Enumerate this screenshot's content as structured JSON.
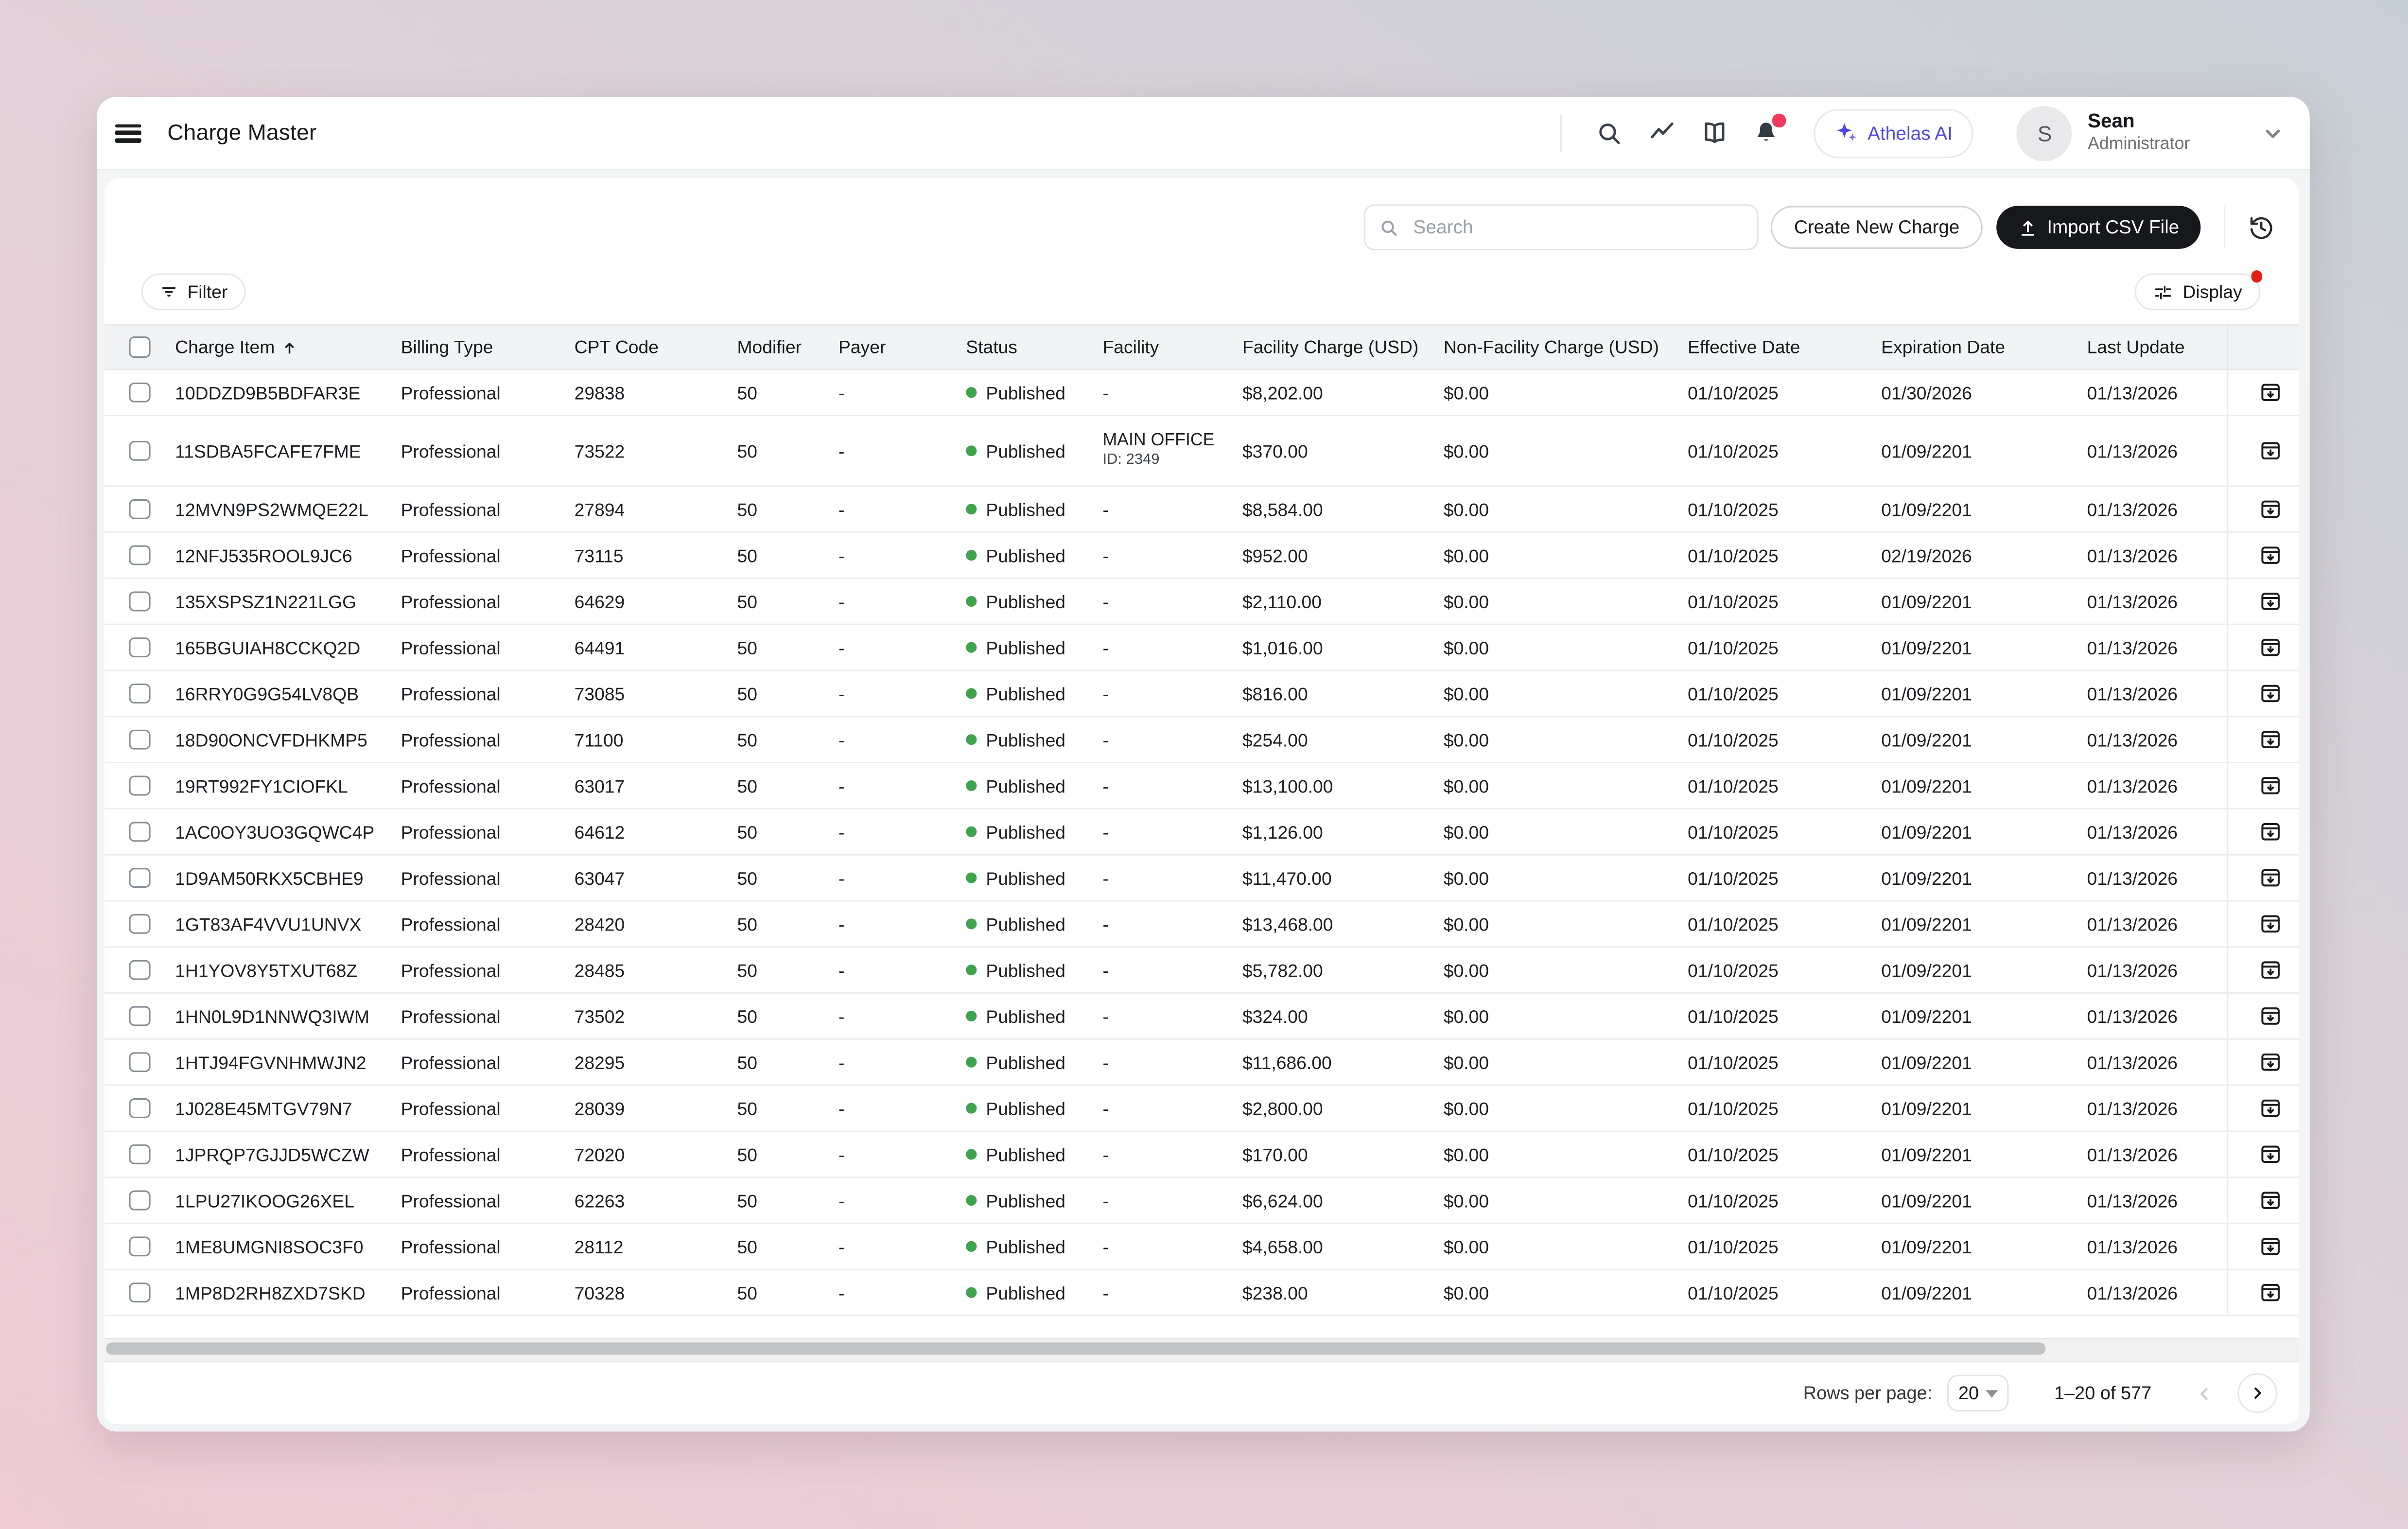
{
  "app": {
    "title": "Charge Master"
  },
  "header": {
    "athelas_button": "Athelas AI",
    "user": {
      "initial": "S",
      "name": "Sean",
      "role": "Administrator"
    },
    "icons": [
      "search-icon",
      "trending-icon",
      "book-icon",
      "bell-icon"
    ]
  },
  "toolbar": {
    "search_placeholder": "Search",
    "create_button": "Create New Charge",
    "import_button": "Import CSV File"
  },
  "controls": {
    "filter_button": "Filter",
    "display_button": "Display"
  },
  "table": {
    "sort": {
      "column": "Charge Item",
      "direction": "asc"
    },
    "columns": [
      "Charge Item",
      "Billing Type",
      "CPT Code",
      "Modifier",
      "Payer",
      "Status",
      "Facility",
      "Facility Charge (USD)",
      "Non-Facility Charge (USD)",
      "Effective Date",
      "Expiration Date",
      "Last Update"
    ],
    "column_keys": [
      "id",
      "billing",
      "cpt",
      "modifier",
      "payer",
      "status",
      "facility",
      "fac_charge",
      "nonfac_charge",
      "effective",
      "expiration",
      "updated"
    ],
    "rows": [
      {
        "id": "10DDZD9B5BDFAR3E",
        "billing": "Professional",
        "cpt": "29838",
        "modifier": "50",
        "payer": "-",
        "status": "Published",
        "facility": "-",
        "fac_charge": "$8,202.00",
        "nonfac_charge": "$0.00",
        "effective": "01/10/2025",
        "expiration": "01/30/2026",
        "updated": "01/13/2026"
      },
      {
        "id": "11SDBA5FCAFE7FME",
        "billing": "Professional",
        "cpt": "73522",
        "modifier": "50",
        "payer": "-",
        "status": "Published",
        "facility": "",
        "facility_name": "MAIN OFFICE",
        "facility_id": "ID: 2349",
        "fac_charge": "$370.00",
        "nonfac_charge": "$0.00",
        "effective": "01/10/2025",
        "expiration": "01/09/2201",
        "updated": "01/13/2026"
      },
      {
        "id": "12MVN9PS2WMQE22L",
        "billing": "Professional",
        "cpt": "27894",
        "modifier": "50",
        "payer": "-",
        "status": "Published",
        "facility": "-",
        "fac_charge": "$8,584.00",
        "nonfac_charge": "$0.00",
        "effective": "01/10/2025",
        "expiration": "01/09/2201",
        "updated": "01/13/2026"
      },
      {
        "id": "12NFJ535ROOL9JC6",
        "billing": "Professional",
        "cpt": "73115",
        "modifier": "50",
        "payer": "-",
        "status": "Published",
        "facility": "-",
        "fac_charge": "$952.00",
        "nonfac_charge": "$0.00",
        "effective": "01/10/2025",
        "expiration": "02/19/2026",
        "updated": "01/13/2026"
      },
      {
        "id": "135XSPSZ1N221LGG",
        "billing": "Professional",
        "cpt": "64629",
        "modifier": "50",
        "payer": "-",
        "status": "Published",
        "facility": "-",
        "fac_charge": "$2,110.00",
        "nonfac_charge": "$0.00",
        "effective": "01/10/2025",
        "expiration": "01/09/2201",
        "updated": "01/13/2026"
      },
      {
        "id": "165BGUIAH8CCKQ2D",
        "billing": "Professional",
        "cpt": "64491",
        "modifier": "50",
        "payer": "-",
        "status": "Published",
        "facility": "-",
        "fac_charge": "$1,016.00",
        "nonfac_charge": "$0.00",
        "effective": "01/10/2025",
        "expiration": "01/09/2201",
        "updated": "01/13/2026"
      },
      {
        "id": "16RRY0G9G54LV8QB",
        "billing": "Professional",
        "cpt": "73085",
        "modifier": "50",
        "payer": "-",
        "status": "Published",
        "facility": "-",
        "fac_charge": "$816.00",
        "nonfac_charge": "$0.00",
        "effective": "01/10/2025",
        "expiration": "01/09/2201",
        "updated": "01/13/2026"
      },
      {
        "id": "18D90ONCVFDHKMP5",
        "billing": "Professional",
        "cpt": "71100",
        "modifier": "50",
        "payer": "-",
        "status": "Published",
        "facility": "-",
        "fac_charge": "$254.00",
        "nonfac_charge": "$0.00",
        "effective": "01/10/2025",
        "expiration": "01/09/2201",
        "updated": "01/13/2026"
      },
      {
        "id": "19RT992FY1CIOFKL",
        "billing": "Professional",
        "cpt": "63017",
        "modifier": "50",
        "payer": "-",
        "status": "Published",
        "facility": "-",
        "fac_charge": "$13,100.00",
        "nonfac_charge": "$0.00",
        "effective": "01/10/2025",
        "expiration": "01/09/2201",
        "updated": "01/13/2026"
      },
      {
        "id": "1AC0OY3UO3GQWC4P",
        "billing": "Professional",
        "cpt": "64612",
        "modifier": "50",
        "payer": "-",
        "status": "Published",
        "facility": "-",
        "fac_charge": "$1,126.00",
        "nonfac_charge": "$0.00",
        "effective": "01/10/2025",
        "expiration": "01/09/2201",
        "updated": "01/13/2026"
      },
      {
        "id": "1D9AM50RKX5CBHE9",
        "billing": "Professional",
        "cpt": "63047",
        "modifier": "50",
        "payer": "-",
        "status": "Published",
        "facility": "-",
        "fac_charge": "$11,470.00",
        "nonfac_charge": "$0.00",
        "effective": "01/10/2025",
        "expiration": "01/09/2201",
        "updated": "01/13/2026"
      },
      {
        "id": "1GT83AF4VVU1UNVX",
        "billing": "Professional",
        "cpt": "28420",
        "modifier": "50",
        "payer": "-",
        "status": "Published",
        "facility": "-",
        "fac_charge": "$13,468.00",
        "nonfac_charge": "$0.00",
        "effective": "01/10/2025",
        "expiration": "01/09/2201",
        "updated": "01/13/2026"
      },
      {
        "id": "1H1YOV8Y5TXUT68Z",
        "billing": "Professional",
        "cpt": "28485",
        "modifier": "50",
        "payer": "-",
        "status": "Published",
        "facility": "-",
        "fac_charge": "$5,782.00",
        "nonfac_charge": "$0.00",
        "effective": "01/10/2025",
        "expiration": "01/09/2201",
        "updated": "01/13/2026"
      },
      {
        "id": "1HN0L9D1NNWQ3IWM",
        "billing": "Professional",
        "cpt": "73502",
        "modifier": "50",
        "payer": "-",
        "status": "Published",
        "facility": "-",
        "fac_charge": "$324.00",
        "nonfac_charge": "$0.00",
        "effective": "01/10/2025",
        "expiration": "01/09/2201",
        "updated": "01/13/2026"
      },
      {
        "id": "1HTJ94FGVNHMWJN2",
        "billing": "Professional",
        "cpt": "28295",
        "modifier": "50",
        "payer": "-",
        "status": "Published",
        "facility": "-",
        "fac_charge": "$11,686.00",
        "nonfac_charge": "$0.00",
        "effective": "01/10/2025",
        "expiration": "01/09/2201",
        "updated": "01/13/2026"
      },
      {
        "id": "1J028E45MTGV79N7",
        "billing": "Professional",
        "cpt": "28039",
        "modifier": "50",
        "payer": "-",
        "status": "Published",
        "facility": "-",
        "fac_charge": "$2,800.00",
        "nonfac_charge": "$0.00",
        "effective": "01/10/2025",
        "expiration": "01/09/2201",
        "updated": "01/13/2026"
      },
      {
        "id": "1JPRQP7GJJD5WCZW",
        "billing": "Professional",
        "cpt": "72020",
        "modifier": "50",
        "payer": "-",
        "status": "Published",
        "facility": "-",
        "fac_charge": "$170.00",
        "nonfac_charge": "$0.00",
        "effective": "01/10/2025",
        "expiration": "01/09/2201",
        "updated": "01/13/2026"
      },
      {
        "id": "1LPU27IKOOG26XEL",
        "billing": "Professional",
        "cpt": "62263",
        "modifier": "50",
        "payer": "-",
        "status": "Published",
        "facility": "-",
        "fac_charge": "$6,624.00",
        "nonfac_charge": "$0.00",
        "effective": "01/10/2025",
        "expiration": "01/09/2201",
        "updated": "01/13/2026"
      },
      {
        "id": "1ME8UMGNI8SOC3F0",
        "billing": "Professional",
        "cpt": "28112",
        "modifier": "50",
        "payer": "-",
        "status": "Published",
        "facility": "-",
        "fac_charge": "$4,658.00",
        "nonfac_charge": "$0.00",
        "effective": "01/10/2025",
        "expiration": "01/09/2201",
        "updated": "01/13/2026"
      },
      {
        "id": "1MP8D2RH8ZXD7SKD",
        "billing": "Professional",
        "cpt": "70328",
        "modifier": "50",
        "payer": "-",
        "status": "Published",
        "facility": "-",
        "fac_charge": "$238.00",
        "nonfac_charge": "$0.00",
        "effective": "01/10/2025",
        "expiration": "01/09/2201",
        "updated": "01/13/2026"
      }
    ]
  },
  "pagination": {
    "rows_per_page_label": "Rows per page:",
    "rows_per_page_value": "20",
    "range_text": "1–20 of 577"
  },
  "colors": {
    "accent_blue": "#4f46e5",
    "published_green": "#3fa24c",
    "badge_pink": "#f0395c",
    "alert_red": "#e41f18"
  }
}
